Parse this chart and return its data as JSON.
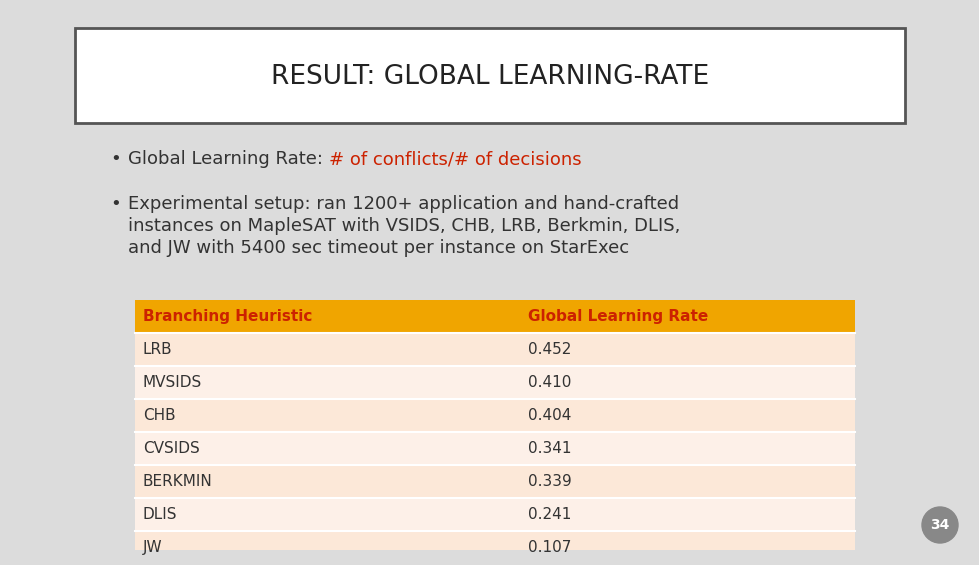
{
  "title": "RESULT: GLOBAL LEARNING-RATE",
  "bullet1_normal": "Global Learning Rate: ",
  "bullet1_red": "# of conflicts/# of decisions",
  "bullet2_line1": "Experimental setup: ran 1200+ application and hand-crafted",
  "bullet2_line2": "instances on MapleSAT with VSIDS, CHB, LRB, Berkmin, DLIS,",
  "bullet2_line3": "and JW with 5400 sec timeout per instance on StarExec",
  "table_header": [
    "Branching Heuristic",
    "Global Learning Rate"
  ],
  "table_rows": [
    [
      "LRB",
      "0.452"
    ],
    [
      "MVSIDS",
      "0.410"
    ],
    [
      "CHB",
      "0.404"
    ],
    [
      "CVSIDS",
      "0.341"
    ],
    [
      "BERKMIN",
      "0.339"
    ],
    [
      "DLIS",
      "0.241"
    ],
    [
      "JW",
      "0.107"
    ]
  ],
  "bg_color": "#dcdcdc",
  "title_box_color": "#ffffff",
  "title_font_color": "#222222",
  "header_bg_color": "#f0a500",
  "header_font_color": "#cc2200",
  "row_color": "#fce8d8",
  "row_alt_color": "#fdf0e8",
  "table_font_color": "#333333",
  "bullet_font_color": "#333333",
  "red_text_color": "#cc2200",
  "slide_number": "34",
  "slide_num_bg": "#888888",
  "slide_num_color": "#ffffff",
  "title_fontsize": 19,
  "bullet_fontsize": 13,
  "table_header_fontsize": 11,
  "table_row_fontsize": 11
}
